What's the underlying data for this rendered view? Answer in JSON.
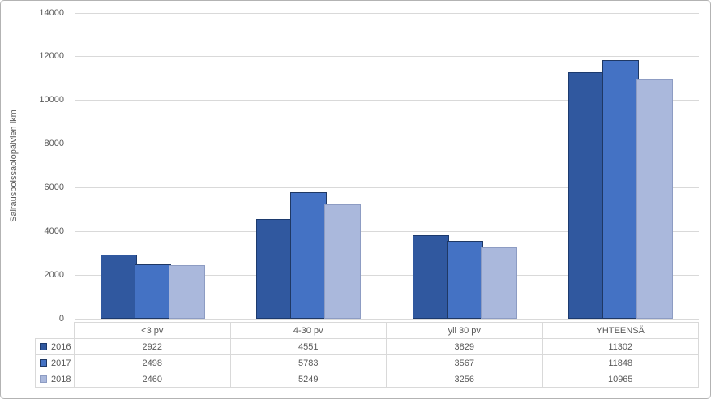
{
  "colors": {
    "text": "#595959",
    "gridline": "#d9d9d9",
    "table_border": "#d9d9d9",
    "frame_border": "#b3b3b3"
  },
  "chart_data": {
    "type": "bar",
    "title": "",
    "xlabel": "",
    "ylabel": "Sairauspoissaolopäivien lkm",
    "categories": [
      "<3 pv",
      "4-30 pv",
      "yli 30 pv",
      "YHTEENSÄ"
    ],
    "series": [
      {
        "name": "2016",
        "values": [
          2922,
          4551,
          3829,
          11302
        ],
        "fill": "#30589f",
        "border": "#1c3a6e"
      },
      {
        "name": "2017",
        "values": [
          2498,
          5783,
          3567,
          11848
        ],
        "fill": "#4472c4",
        "border": "#1f3864"
      },
      {
        "name": "2018",
        "values": [
          2460,
          5249,
          3256,
          10965
        ],
        "fill": "#aab8dc",
        "border": "#8d9cc3"
      }
    ],
    "ylim": [
      0,
      14000
    ],
    "yticks": [
      0,
      2000,
      4000,
      6000,
      8000,
      10000,
      12000,
      14000
    ],
    "grid": "horizontal-only",
    "legend_position": "data-table-left",
    "data_table_shown": true
  }
}
